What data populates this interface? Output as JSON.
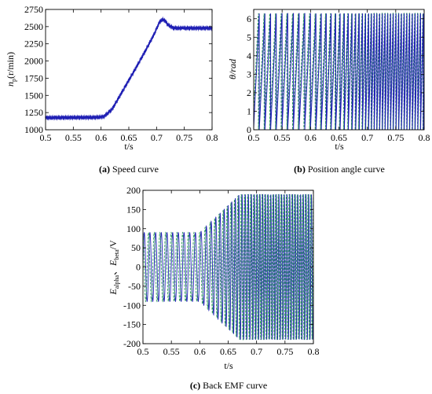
{
  "colors": {
    "primary": "#1f1fb4",
    "secondary": "#2e9e5a",
    "axis": "#000000"
  },
  "chart_data": [
    {
      "type": "line",
      "caption_tag": "(a)",
      "caption_text": "Speed curve",
      "xlabel": "t/s",
      "ylabel": "n_p(r/min)",
      "ylabel_main": "n",
      "ylabel_sub": "p",
      "ylabel_rest": "(r/min)",
      "xlim": [
        0.5,
        0.8
      ],
      "ylim": [
        1000,
        2750
      ],
      "xticks": [
        "0.5",
        "0.55",
        "0.6",
        "0.65",
        "0.7",
        "0.75",
        "0.8"
      ],
      "yticks": [
        "1000",
        "1250",
        "1500",
        "1750",
        "2000",
        "2250",
        "2500",
        "2750"
      ],
      "series": [
        {
          "x": [
            0.5,
            0.55,
            0.59,
            0.605,
            0.62,
            0.64,
            0.66,
            0.68,
            0.695,
            0.705,
            0.71,
            0.715,
            0.72,
            0.73,
            0.74,
            0.8
          ],
          "y": [
            1175,
            1178,
            1180,
            1190,
            1300,
            1580,
            1860,
            2150,
            2380,
            2560,
            2605,
            2590,
            2530,
            2480,
            2478,
            2478
          ]
        }
      ]
    },
    {
      "type": "line",
      "caption_tag": "(b)",
      "caption_text": "Position angle curve",
      "xlabel": "t/s",
      "ylabel": "θ/rad",
      "xlim": [
        0.5,
        0.8
      ],
      "ylim": [
        0,
        6.5
      ],
      "xticks": [
        "0.5",
        "0.55",
        "0.6",
        "0.65",
        "0.7",
        "0.75",
        "0.8"
      ],
      "yticks": [
        "0",
        "1",
        "2",
        "3",
        "4",
        "5",
        "6"
      ],
      "sawtooth": {
        "min": 0,
        "max": 6.2832,
        "period_start": 0.01,
        "period_end": 0.0048,
        "ramp_start": 0.6,
        "ramp_end": 0.71
      }
    },
    {
      "type": "line",
      "caption_tag": "(c)",
      "caption_text": "Back EMF curve",
      "xlabel": "t/s",
      "ylabel": "E_alpha, E_beta/V",
      "ylabel_e1": "E",
      "ylabel_sub1": "alpha",
      "ylabel_sep": "、",
      "ylabel_e2": "E",
      "ylabel_sub2": "beta",
      "ylabel_unit": "/V",
      "xlim": [
        0.5,
        0.8
      ],
      "ylim": [
        -200,
        200
      ],
      "xticks": [
        "0.5",
        "0.55",
        "0.6",
        "0.65",
        "0.7",
        "0.75",
        "0.8"
      ],
      "yticks": [
        "200",
        "150",
        "100",
        "50",
        "0",
        "-50",
        "-100",
        "-150",
        "-200"
      ],
      "amplitude": {
        "start": 90,
        "end": 190,
        "ramp_start": 0.6,
        "ramp_end": 0.67
      },
      "series": [
        {
          "name": "",
          "phase": 0
        },
        {
          "name": "",
          "phase": 1.5708
        }
      ]
    }
  ]
}
